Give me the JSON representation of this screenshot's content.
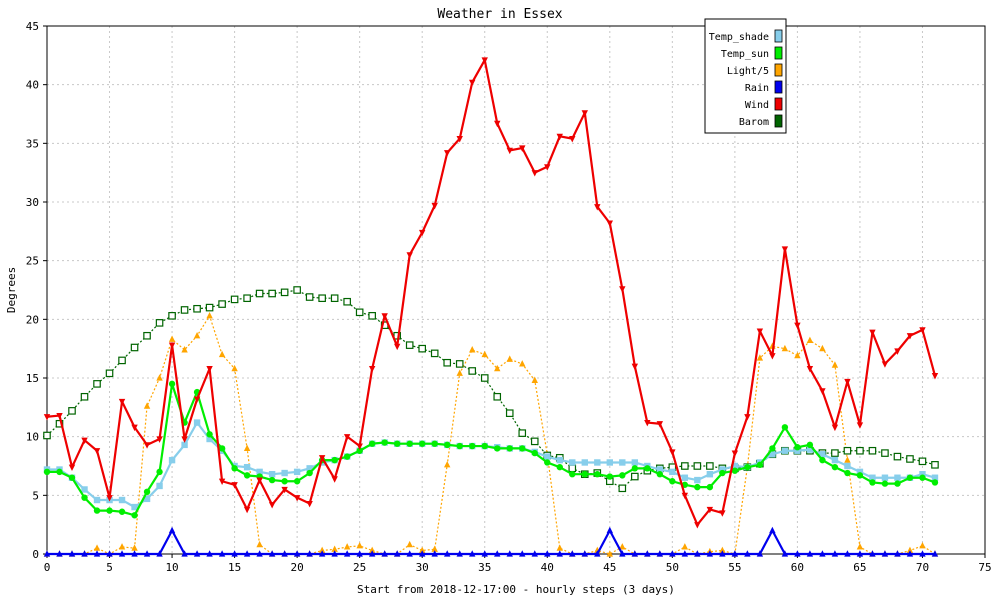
{
  "chart_data": {
    "type": "line",
    "title": "Weather in Essex",
    "xlabel": "Start from 2018-12-17:00 - hourly steps (3 days)",
    "ylabel": "Degrees",
    "xlim": [
      0,
      75
    ],
    "ylim": [
      0,
      45
    ],
    "x_ticks": [
      0,
      5,
      10,
      15,
      20,
      25,
      30,
      35,
      40,
      45,
      50,
      55,
      60,
      65,
      70,
      75
    ],
    "y_ticks": [
      0,
      5,
      10,
      15,
      20,
      25,
      30,
      35,
      40,
      45
    ],
    "grid": true,
    "legend_position": "top-right",
    "series": [
      {
        "name": "Temp_shade",
        "color": "#87ceeb",
        "marker": "square",
        "values": [
          7.2,
          7.2,
          6.5,
          5.5,
          4.6,
          4.6,
          4.6,
          4.0,
          4.7,
          5.8,
          8.0,
          9.3,
          11.2,
          9.8,
          8.8,
          7.5,
          7.4,
          7.0,
          6.8,
          6.9,
          7.0,
          7.3,
          7.8,
          8.0,
          8.3,
          8.8,
          9.4,
          9.5,
          9.4,
          9.4,
          9.4,
          9.4,
          9.3,
          9.2,
          9.2,
          9.2,
          9.1,
          9.0,
          9.0,
          8.7,
          8.3,
          8.0,
          7.8,
          7.8,
          7.8,
          7.8,
          7.8,
          7.8,
          7.5,
          7.2,
          7.0,
          6.5,
          6.3,
          6.8,
          7.2,
          7.5,
          7.4,
          7.8,
          8.5,
          8.8,
          8.8,
          8.9,
          8.5,
          8.0,
          7.5,
          7.0,
          6.5,
          6.5,
          6.5,
          6.5,
          6.8,
          6.5
        ]
      },
      {
        "name": "Temp_sun",
        "color": "#00ee00",
        "marker": "circle",
        "values": [
          7.0,
          7.0,
          6.5,
          4.8,
          3.7,
          3.7,
          3.6,
          3.3,
          5.3,
          7.0,
          14.5,
          11.2,
          13.8,
          10.2,
          9.0,
          7.3,
          6.7,
          6.6,
          6.3,
          6.2,
          6.2,
          6.9,
          8.0,
          8.0,
          8.3,
          8.8,
          9.4,
          9.5,
          9.4,
          9.4,
          9.4,
          9.4,
          9.3,
          9.2,
          9.2,
          9.2,
          9.0,
          9.0,
          9.0,
          8.6,
          7.8,
          7.4,
          6.8,
          6.8,
          6.8,
          6.6,
          6.7,
          7.3,
          7.3,
          6.8,
          6.2,
          5.9,
          5.7,
          5.7,
          6.9,
          7.1,
          7.4,
          7.6,
          9.0,
          10.8,
          9.1,
          9.3,
          8.0,
          7.4,
          6.9,
          6.7,
          6.1,
          6.0,
          6.0,
          6.5,
          6.5,
          6.1
        ]
      },
      {
        "name": "Light/5",
        "color": "#ffa500",
        "marker": "triangle-up",
        "values": [
          0,
          0,
          0,
          0,
          0.5,
          0,
          0.6,
          0.5,
          12.6,
          15.0,
          18.3,
          17.4,
          18.6,
          20.3,
          17.0,
          15.8,
          9.0,
          0.8,
          0,
          0,
          0,
          0,
          0.3,
          0.4,
          0.6,
          0.7,
          0.3,
          0,
          0,
          0.8,
          0.3,
          0.4,
          7.6,
          15.4,
          17.4,
          17.0,
          15.8,
          16.6,
          16.2,
          14.8,
          8.5,
          0.5,
          0,
          0,
          0.3,
          0,
          0.6,
          0,
          0,
          0,
          0,
          0.6,
          0,
          0.2,
          0.3,
          0,
          7.4,
          16.7,
          17.7,
          17.5,
          16.9,
          18.2,
          17.5,
          16.1,
          8.0,
          0.6,
          0,
          0,
          0,
          0.3,
          0.7,
          0
        ]
      },
      {
        "name": "Rain",
        "color": "#0000ee",
        "marker": "triangle-up",
        "values": [
          0,
          0,
          0,
          0,
          0,
          0,
          0,
          0,
          0,
          0,
          2.0,
          0,
          0,
          0,
          0,
          0,
          0,
          0,
          0,
          0,
          0,
          0,
          0,
          0,
          0,
          0,
          0,
          0,
          0,
          0,
          0,
          0,
          0,
          0,
          0,
          0,
          0,
          0,
          0,
          0,
          0,
          0,
          0,
          0,
          0,
          2.0,
          0,
          0,
          0,
          0,
          0,
          0,
          0,
          0,
          0,
          0,
          0,
          0,
          2.0,
          0,
          0,
          0,
          0,
          0,
          0,
          0,
          0,
          0,
          0,
          0,
          0,
          0
        ]
      },
      {
        "name": "Wind",
        "color": "#ee0000",
        "marker": "triangle-down",
        "values": [
          11.7,
          11.8,
          7.4,
          9.7,
          8.8,
          4.8,
          13.0,
          10.8,
          9.3,
          9.8,
          17.8,
          9.8,
          13.2,
          15.8,
          6.2,
          5.9,
          3.8,
          6.3,
          4.2,
          5.5,
          4.8,
          4.3,
          8.2,
          6.4,
          10.0,
          9.2,
          15.8,
          20.3,
          17.7,
          25.5,
          27.4,
          29.7,
          34.2,
          35.4,
          40.2,
          42.1,
          36.7,
          34.4,
          34.6,
          32.5,
          33.0,
          35.6,
          35.4,
          37.6,
          29.6,
          28.2,
          22.6,
          16.0,
          11.2,
          11.1,
          8.7,
          5.0,
          2.5,
          3.8,
          3.5,
          8.6,
          11.7,
          19.0,
          16.9,
          26.0,
          19.5,
          15.8,
          13.9,
          10.8,
          14.7,
          11.0,
          18.9,
          16.2,
          17.3,
          18.6,
          19.1,
          15.2
        ]
      },
      {
        "name": "Barom",
        "color": "#006400",
        "marker": "square-open",
        "dashed": true,
        "values": [
          10.1,
          11.1,
          12.2,
          13.4,
          14.5,
          15.4,
          16.5,
          17.6,
          18.6,
          19.7,
          20.3,
          20.8,
          20.9,
          21.0,
          21.3,
          21.7,
          21.8,
          22.2,
          22.2,
          22.3,
          22.5,
          21.9,
          21.8,
          21.8,
          21.5,
          20.6,
          20.3,
          19.5,
          18.6,
          17.8,
          17.5,
          17.1,
          16.3,
          16.2,
          15.6,
          15.0,
          13.4,
          12.0,
          10.3,
          9.6,
          8.4,
          8.2,
          7.3,
          6.8,
          6.9,
          6.2,
          5.6,
          6.6,
          7.1,
          7.3,
          7.4,
          7.5,
          7.5,
          7.5,
          7.3,
          7.3,
          7.4,
          7.7,
          8.5,
          8.8,
          8.8,
          8.8,
          8.6,
          8.6,
          8.8,
          8.8,
          8.8,
          8.6,
          8.3,
          8.1,
          7.9,
          7.6
        ]
      }
    ]
  }
}
